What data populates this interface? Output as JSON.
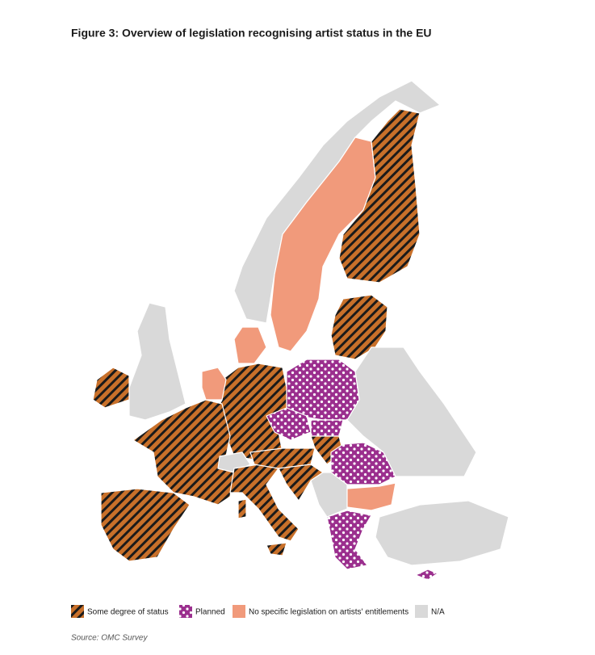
{
  "title": "Figure 3: Overview of legislation recognising artist status in the EU",
  "legend": [
    {
      "label": "Some degree of status"
    },
    {
      "label": "Planned"
    },
    {
      "label": "No specific legislation on artists' entitlements"
    },
    {
      "label": "N/A"
    }
  ],
  "source": "Source: OMC Survey"
}
